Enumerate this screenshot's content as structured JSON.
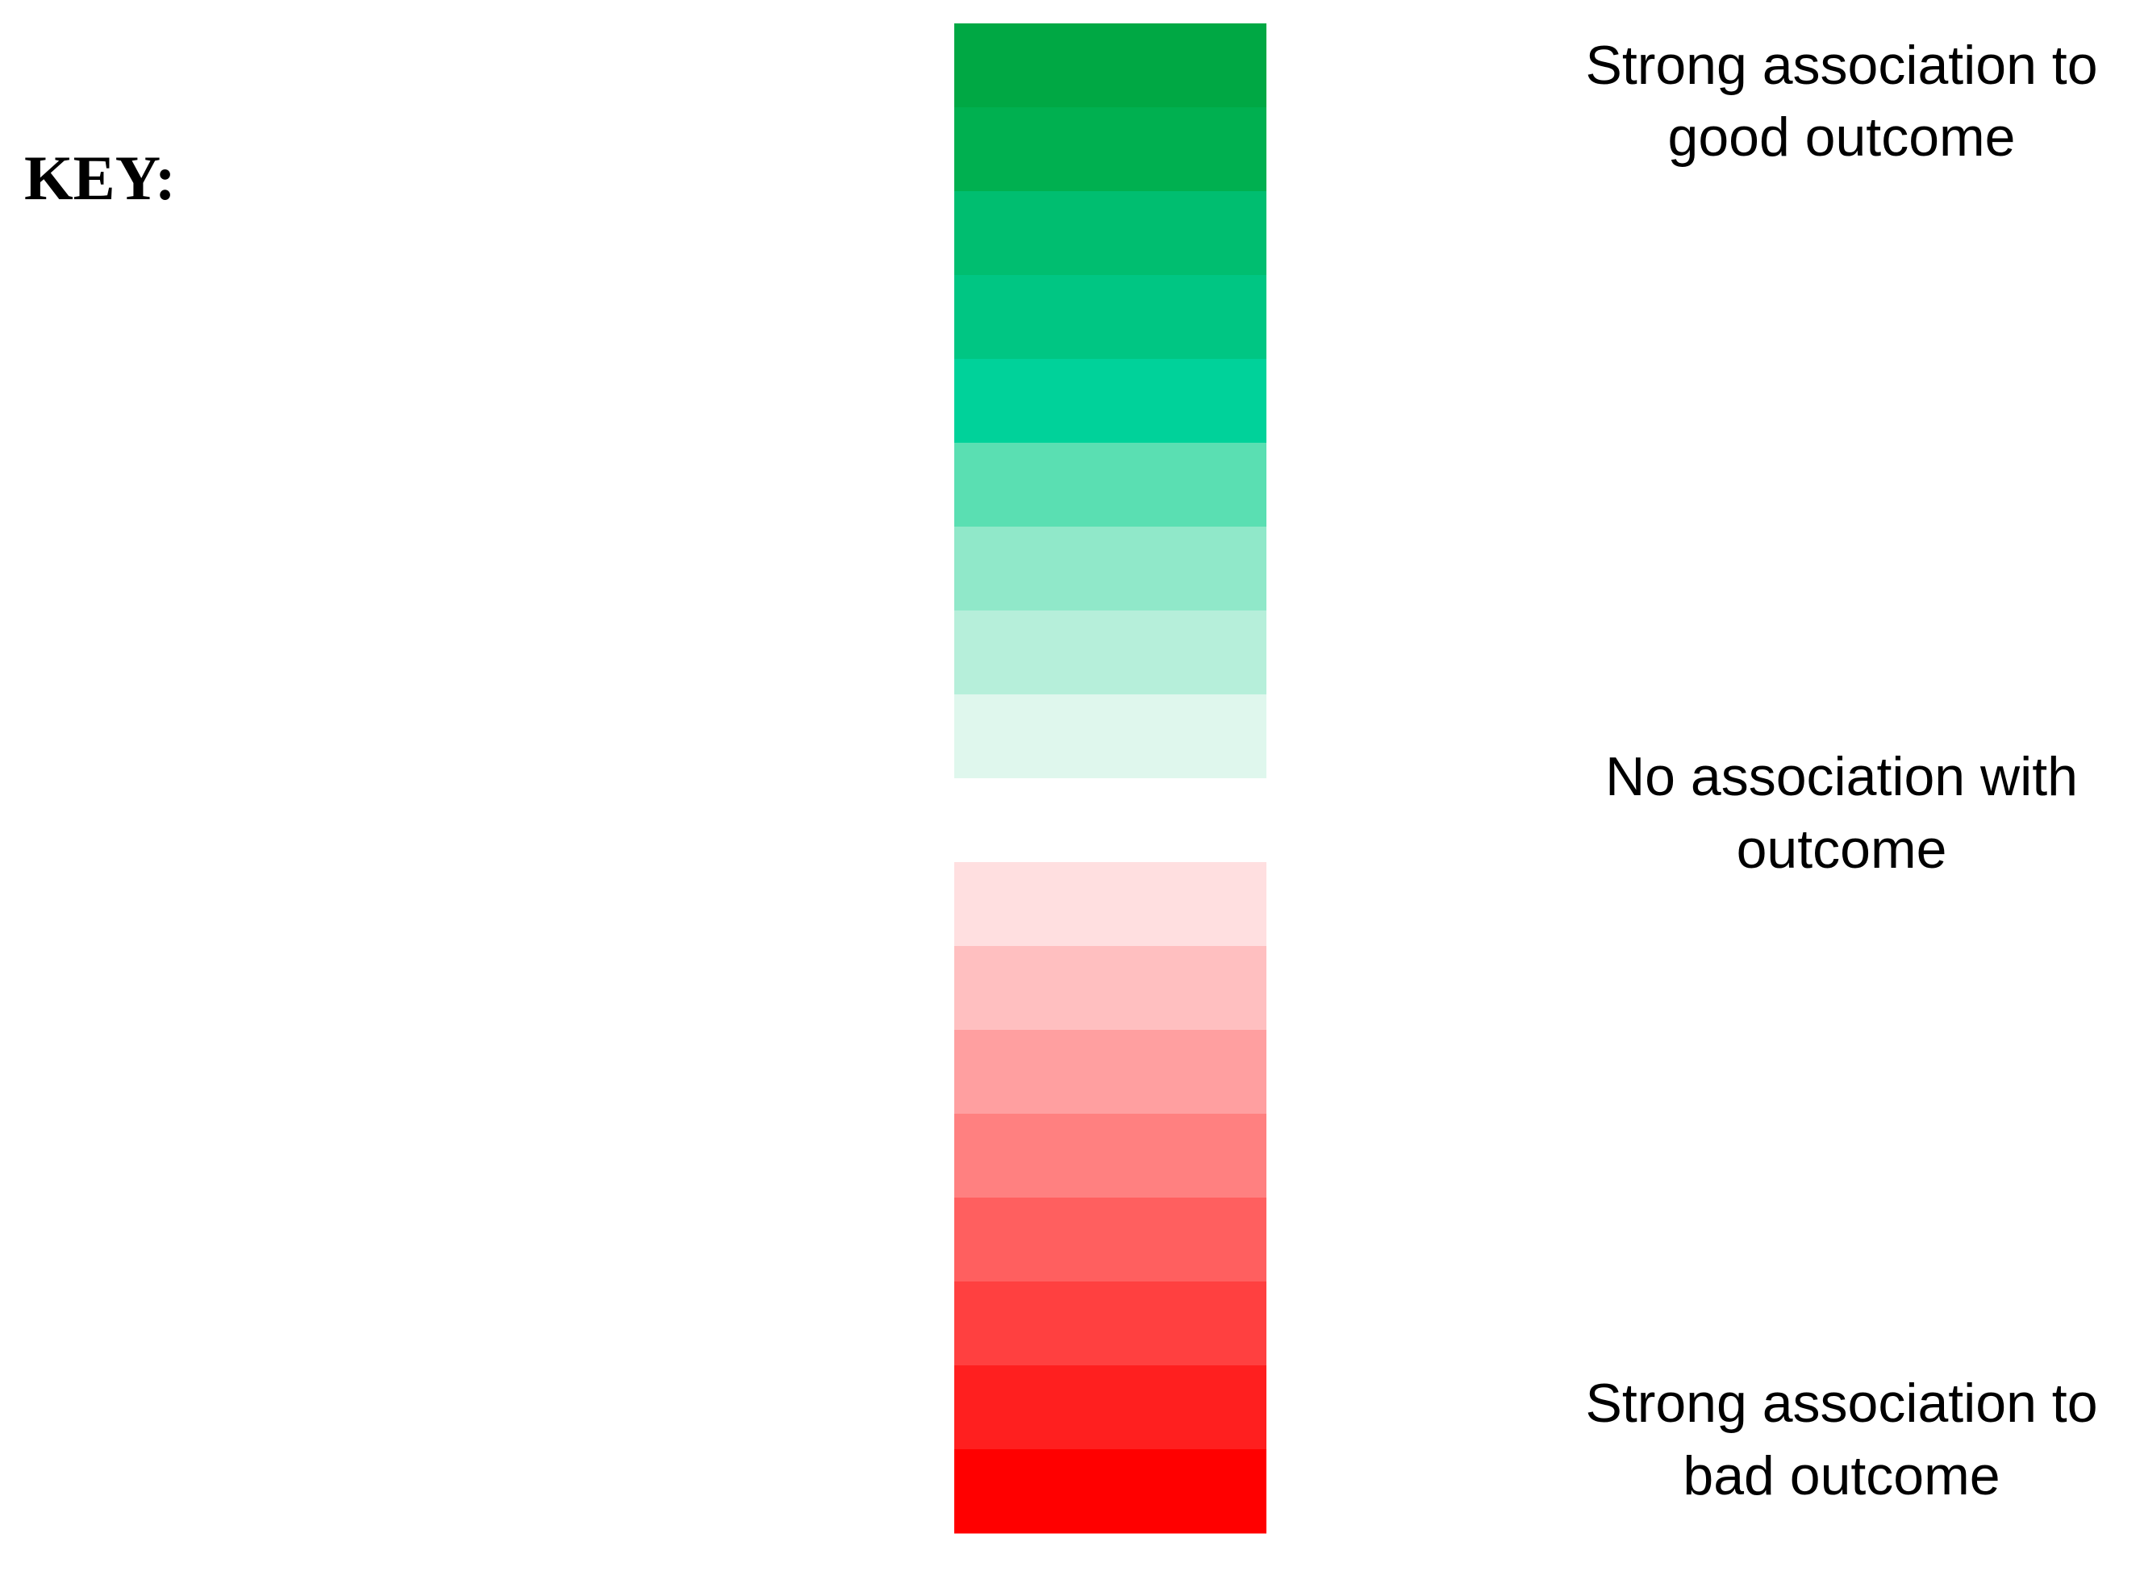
{
  "key": {
    "title": "KEY:",
    "swatches": [
      "#00A844",
      "#00B050",
      "#00BE70",
      "#00C683",
      "#00D29A",
      "#5ADFB2",
      "#90E8C9",
      "#B6EFDA",
      "#DFF7ED",
      "#FFFFFF",
      "#FFDFE0",
      "#FFBFC0",
      "#FF9FA0",
      "#FF8080",
      "#FF5F5F",
      "#FF4040",
      "#FF1F1F",
      "#FF0000"
    ],
    "labels": [
      {
        "lines": [
          "Strong association to",
          "good outcome"
        ]
      },
      {
        "lines": [
          "No association with",
          "outcome"
        ]
      },
      {
        "lines": [
          "Strong association to",
          "bad outcome"
        ]
      }
    ]
  }
}
